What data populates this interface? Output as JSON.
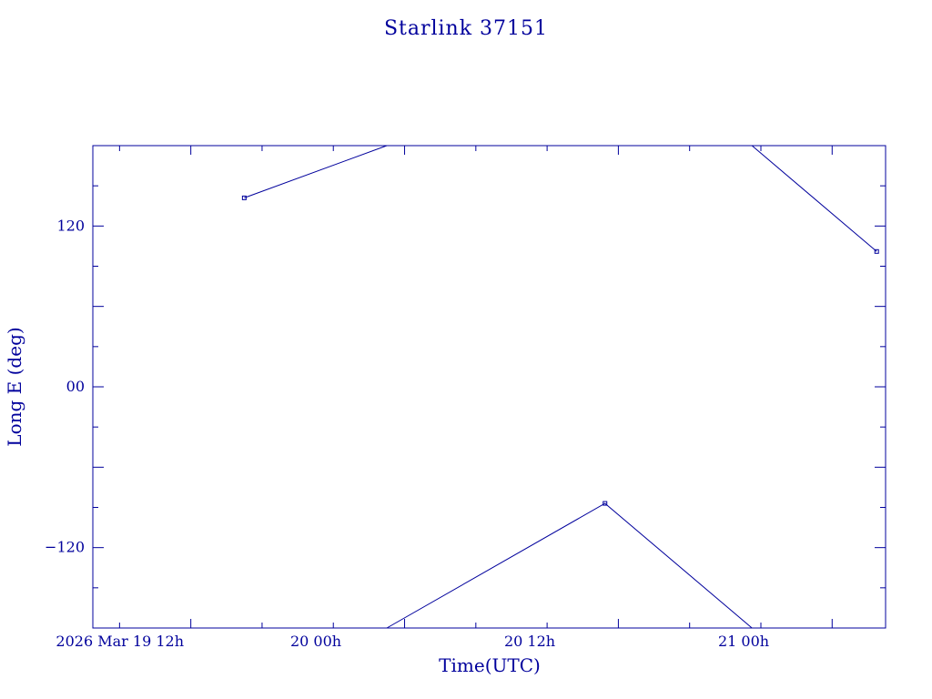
{
  "chart_data": {
    "type": "line",
    "title": "Starlink 37151",
    "xlabel": "Time(UTC)",
    "ylabel": "Long E (deg)",
    "x_ticklabels": [
      "2026 Mar 19  12h",
      "20  00h",
      "20  12h",
      "21  00h"
    ],
    "y_ticklabels": [
      "120",
      "00",
      "−120"
    ],
    "ylim": [
      -180,
      180
    ],
    "xlim": [
      "2026-03-19T06:30",
      "2026-03-21T03:00"
    ],
    "color": "#00009c",
    "grid": false,
    "series": [
      {
        "segments": [
          [
            [
              "2026-03-19T15:00",
              141
            ],
            [
              "2026-03-19T23:00",
              180
            ]
          ],
          [
            [
              "2026-03-19T23:00",
              -180
            ],
            [
              "2026-03-20T11:15",
              -87
            ],
            [
              "2026-03-20T19:30",
              -180
            ]
          ],
          [
            [
              "2026-03-20T19:30",
              180
            ],
            [
              "2026-03-21T02:30",
              101
            ]
          ]
        ],
        "points": [
          [
            "2026-03-19T15:00",
            141
          ],
          [
            "2026-03-20T11:15",
            -87
          ],
          [
            "2026-03-21T02:30",
            101
          ]
        ]
      }
    ]
  }
}
